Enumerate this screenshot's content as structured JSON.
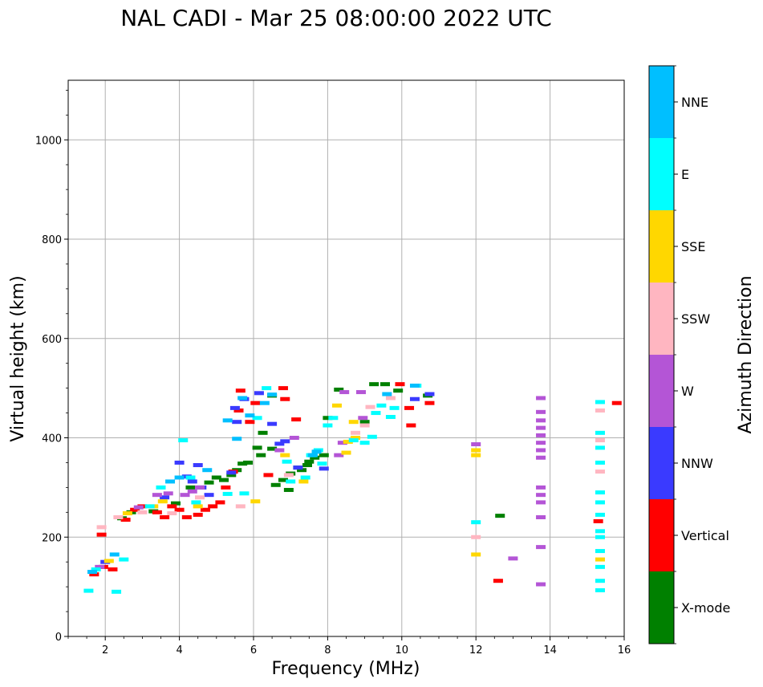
{
  "chart_data": {
    "type": "scatter",
    "title": "NAL CADI - Mar 25 08:00:00 2022 UTC",
    "xlabel": "Frequency (MHz)",
    "ylabel": "Virtual height (km)",
    "xlim": [
      1,
      16
    ],
    "ylim": [
      0,
      1120
    ],
    "xticks": [
      "2",
      "4",
      "6",
      "8",
      "10",
      "12",
      "14",
      "16"
    ],
    "yticks": [
      "0",
      "200",
      "400",
      "600",
      "800",
      "1000"
    ],
    "grid": true,
    "colorbar": {
      "label": "Azimuth Direction",
      "categories": [
        "X-mode",
        "Vertical",
        "NNW",
        "W",
        "SSW",
        "SSE",
        "E",
        "NNE"
      ],
      "colors": [
        "#008000",
        "#ff0000",
        "#3a3aff",
        "#b455d6",
        "#ffb6c1",
        "#ffd700",
        "#00ffff",
        "#00bfff"
      ]
    },
    "series": [
      {
        "name": "X-mode",
        "points": [
          [
            2.45,
            238
          ],
          [
            2.7,
            250
          ],
          [
            3.3,
            252
          ],
          [
            3.9,
            268
          ],
          [
            4.3,
            300
          ],
          [
            4.8,
            310
          ],
          [
            5.0,
            320
          ],
          [
            5.2,
            315
          ],
          [
            5.4,
            325
          ],
          [
            5.55,
            335
          ],
          [
            5.7,
            348
          ],
          [
            5.85,
            350
          ],
          [
            6.1,
            380
          ],
          [
            6.2,
            365
          ],
          [
            6.25,
            410
          ],
          [
            6.5,
            378
          ],
          [
            6.5,
            485
          ],
          [
            6.6,
            305
          ],
          [
            6.8,
            315
          ],
          [
            6.95,
            295
          ],
          [
            7.0,
            328
          ],
          [
            7.2,
            340
          ],
          [
            7.3,
            335
          ],
          [
            7.45,
            345
          ],
          [
            7.5,
            352
          ],
          [
            7.65,
            360
          ],
          [
            7.9,
            365
          ],
          [
            8.0,
            440
          ],
          [
            8.3,
            497
          ],
          [
            9.0,
            432
          ],
          [
            9.25,
            508
          ],
          [
            9.55,
            508
          ],
          [
            9.9,
            495
          ],
          [
            10.7,
            485
          ],
          [
            12.65,
            243
          ]
        ]
      },
      {
        "name": "Vertical",
        "points": [
          [
            1.7,
            125
          ],
          [
            1.9,
            205
          ],
          [
            1.95,
            140
          ],
          [
            2.2,
            135
          ],
          [
            2.55,
            235
          ],
          [
            2.8,
            255
          ],
          [
            3.0,
            262
          ],
          [
            3.4,
            250
          ],
          [
            3.6,
            240
          ],
          [
            3.8,
            262
          ],
          [
            4.0,
            255
          ],
          [
            4.2,
            240
          ],
          [
            4.5,
            245
          ],
          [
            4.7,
            255
          ],
          [
            4.9,
            262
          ],
          [
            5.1,
            270
          ],
          [
            5.25,
            300
          ],
          [
            5.45,
            332
          ],
          [
            5.6,
            455
          ],
          [
            5.65,
            495
          ],
          [
            5.9,
            432
          ],
          [
            6.05,
            470
          ],
          [
            6.4,
            325
          ],
          [
            6.8,
            500
          ],
          [
            6.85,
            478
          ],
          [
            7.15,
            437
          ],
          [
            9.95,
            508
          ],
          [
            10.2,
            460
          ],
          [
            10.25,
            425
          ],
          [
            10.75,
            470
          ],
          [
            12.6,
            112
          ],
          [
            15.3,
            232
          ],
          [
            15.8,
            470
          ]
        ]
      },
      {
        "name": "NNW",
        "points": [
          [
            2.0,
            150
          ],
          [
            3.6,
            280
          ],
          [
            4.0,
            350
          ],
          [
            4.2,
            322
          ],
          [
            4.35,
            312
          ],
          [
            4.5,
            345
          ],
          [
            4.6,
            300
          ],
          [
            4.8,
            285
          ],
          [
            5.4,
            330
          ],
          [
            5.5,
            460
          ],
          [
            5.55,
            432
          ],
          [
            5.75,
            478
          ],
          [
            6.15,
            490
          ],
          [
            6.5,
            428
          ],
          [
            6.7,
            388
          ],
          [
            6.85,
            393
          ],
          [
            7.2,
            340
          ],
          [
            7.9,
            338
          ],
          [
            10.35,
            478
          ],
          [
            10.75,
            488
          ]
        ]
      },
      {
        "name": "W",
        "points": [
          [
            1.85,
            140
          ],
          [
            2.9,
            260
          ],
          [
            3.4,
            285
          ],
          [
            3.7,
            288
          ],
          [
            4.15,
            285
          ],
          [
            4.35,
            292
          ],
          [
            4.55,
            300
          ],
          [
            6.7,
            375
          ],
          [
            7.1,
            400
          ],
          [
            8.3,
            365
          ],
          [
            8.4,
            390
          ],
          [
            8.45,
            492
          ],
          [
            8.9,
            492
          ],
          [
            8.95,
            440
          ],
          [
            12.0,
            387
          ],
          [
            13.0,
            157
          ],
          [
            13.75,
            480
          ],
          [
            13.75,
            452
          ],
          [
            13.75,
            435
          ],
          [
            13.75,
            420
          ],
          [
            13.75,
            405
          ],
          [
            13.75,
            390
          ],
          [
            13.75,
            375
          ],
          [
            13.75,
            360
          ],
          [
            13.75,
            300
          ],
          [
            13.75,
            285
          ],
          [
            13.75,
            270
          ],
          [
            13.75,
            240
          ],
          [
            13.75,
            180
          ],
          [
            13.75,
            105
          ]
        ]
      },
      {
        "name": "SSW",
        "points": [
          [
            1.9,
            220
          ],
          [
            2.35,
            240
          ],
          [
            3.0,
            250
          ],
          [
            3.8,
            248
          ],
          [
            4.55,
            280
          ],
          [
            5.65,
            262
          ],
          [
            6.95,
            325
          ],
          [
            8.75,
            410
          ],
          [
            9.0,
            425
          ],
          [
            9.15,
            462
          ],
          [
            9.7,
            480
          ],
          [
            12.0,
            200
          ],
          [
            15.35,
            455
          ],
          [
            15.35,
            395
          ],
          [
            15.35,
            332
          ]
        ]
      },
      {
        "name": "SSE",
        "points": [
          [
            2.1,
            152
          ],
          [
            2.6,
            248
          ],
          [
            3.3,
            262
          ],
          [
            3.55,
            272
          ],
          [
            4.5,
            262
          ],
          [
            6.05,
            272
          ],
          [
            6.85,
            365
          ],
          [
            7.35,
            312
          ],
          [
            8.25,
            465
          ],
          [
            8.5,
            370
          ],
          [
            8.55,
            392
          ],
          [
            8.7,
            432
          ],
          [
            8.75,
            400
          ],
          [
            12.0,
            375
          ],
          [
            12.0,
            365
          ],
          [
            12.0,
            165
          ],
          [
            15.35,
            155
          ]
        ]
      },
      {
        "name": "E",
        "points": [
          [
            1.55,
            92
          ],
          [
            1.75,
            135
          ],
          [
            2.3,
            90
          ],
          [
            2.5,
            155
          ],
          [
            3.2,
            262
          ],
          [
            3.5,
            300
          ],
          [
            4.1,
            395
          ],
          [
            4.3,
            320
          ],
          [
            4.45,
            270
          ],
          [
            5.3,
            287
          ],
          [
            5.75,
            288
          ],
          [
            6.1,
            440
          ],
          [
            6.35,
            500
          ],
          [
            6.9,
            352
          ],
          [
            7.0,
            312
          ],
          [
            7.4,
            320
          ],
          [
            7.55,
            365
          ],
          [
            7.75,
            375
          ],
          [
            7.85,
            348
          ],
          [
            8.0,
            425
          ],
          [
            8.15,
            440
          ],
          [
            8.7,
            395
          ],
          [
            9.0,
            390
          ],
          [
            9.2,
            402
          ],
          [
            9.3,
            450
          ],
          [
            9.45,
            465
          ],
          [
            9.7,
            442
          ],
          [
            9.8,
            460
          ],
          [
            10.4,
            505
          ],
          [
            12.0,
            230
          ],
          [
            15.35,
            472
          ],
          [
            15.35,
            410
          ],
          [
            15.35,
            380
          ],
          [
            15.35,
            350
          ],
          [
            15.35,
            290
          ],
          [
            15.35,
            270
          ],
          [
            15.35,
            245
          ],
          [
            15.35,
            212
          ],
          [
            15.35,
            200
          ],
          [
            15.35,
            172
          ],
          [
            15.35,
            140
          ],
          [
            15.35,
            112
          ],
          [
            15.35,
            93
          ]
        ]
      },
      {
        "name": "NNE",
        "points": [
          [
            1.65,
            130
          ],
          [
            2.25,
            165
          ],
          [
            3.75,
            312
          ],
          [
            4.0,
            320
          ],
          [
            4.75,
            335
          ],
          [
            5.3,
            435
          ],
          [
            5.55,
            398
          ],
          [
            5.7,
            480
          ],
          [
            5.9,
            445
          ],
          [
            6.3,
            470
          ],
          [
            6.5,
            487
          ],
          [
            7.6,
            365
          ],
          [
            7.7,
            372
          ],
          [
            9.6,
            488
          ],
          [
            10.35,
            505
          ]
        ]
      }
    ]
  }
}
